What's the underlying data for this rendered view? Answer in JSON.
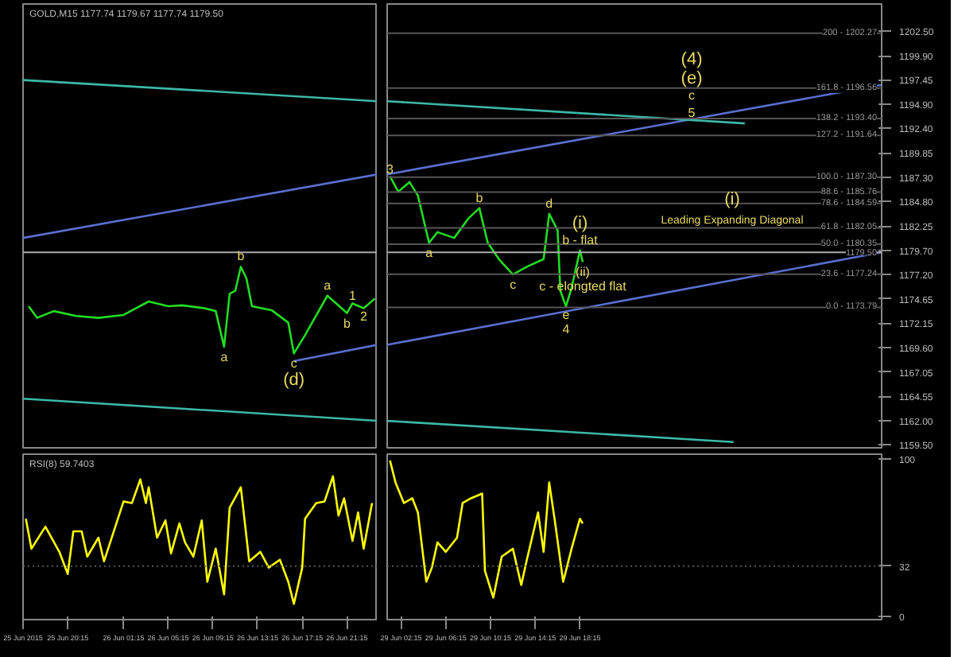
{
  "chart_data": [
    {
      "type": "line",
      "title": "GOLD,M15  1177.74 1179.67 1177.74 1179.50",
      "xlim": [
        "2015-06-25T16:15",
        "2015-06-27T00:00"
      ],
      "ylim": [
        1159.2,
        1205.3
      ],
      "tick_labels": false,
      "series": [
        {
          "color": "#22dd22",
          "x": [
            "2015-06-25T16:45",
            "2015-06-25T17:30",
            "2015-06-25T19:00",
            "2015-06-25T21:00",
            "2015-06-25T23:00",
            "2015-06-26T01:15",
            "2015-06-26T03:30",
            "2015-06-26T05:15",
            "2015-06-26T06:30",
            "2015-06-26T08:30",
            "2015-06-26T09:30",
            "2015-06-26T10:15",
            "2015-06-26T10:45",
            "2015-06-26T11:15",
            "2015-06-26T11:45",
            "2015-06-26T12:15",
            "2015-06-26T12:45",
            "2015-06-26T14:30",
            "2015-06-26T16:00",
            "2015-06-26T16:30",
            "2015-06-26T17:30",
            "2015-06-26T19:30",
            "2015-06-26T21:15",
            "2015-06-26T21:45",
            "2015-06-26T22:45",
            "2015-06-26T23:45"
          ],
          "values": [
            1173.9,
            1172.7,
            1173.4,
            1172.9,
            1172.7,
            1173.0,
            1174.4,
            1173.9,
            1174.0,
            1173.7,
            1173.4,
            1169.7,
            1175.2,
            1175.5,
            1178.0,
            1176.8,
            1173.9,
            1173.5,
            1172.2,
            1169.0,
            1170.9,
            1175.0,
            1173.2,
            1174.2,
            1173.7,
            1174.7
          ]
        },
        {
          "color": "#5a6fd0",
          "x": [
            "2015-06-25T16:15",
            "2015-06-27T00:00"
          ],
          "values": [
            1181.0,
            1187.6
          ]
        },
        {
          "color": "#5a6fd0",
          "x": [
            "2015-06-26T16:30",
            "2015-06-27T00:00"
          ],
          "values": [
            1168.2,
            1169.9
          ]
        },
        {
          "color": "#3cb8a8",
          "x": [
            "2015-06-25T16:15",
            "2015-06-27T00:00"
          ],
          "values": [
            1197.4,
            1195.2
          ]
        },
        {
          "color": "#3cb8a8",
          "x": [
            "2015-06-25T16:15",
            "2015-06-27T00:00"
          ],
          "values": [
            1164.3,
            1162.0
          ]
        }
      ],
      "ref_lines": [
        {
          "axis": "y",
          "value": 1179.5,
          "color": "#aaaaaa"
        }
      ],
      "annotations": [
        {
          "text": "1",
          "x": "2015-06-26T21:45",
          "y": 1174.2
        },
        {
          "text": "2",
          "x": "2015-06-26T22:45",
          "y": 1173.7
        },
        {
          "text": "b",
          "x": "2015-06-26T11:45",
          "y": 1178.0
        },
        {
          "text": "a",
          "x": "2015-06-26T10:15",
          "y": 1169.7
        },
        {
          "text": "c",
          "x": "2015-06-26T16:30",
          "y": 1169.0
        },
        {
          "text": "(d)",
          "x": "2015-06-26T16:30",
          "y": 1169.0
        },
        {
          "text": "a",
          "x": "2015-06-26T19:30",
          "y": 1175.0
        },
        {
          "text": "b",
          "x": "2015-06-26T21:15",
          "y": 1173.2
        }
      ]
    },
    {
      "type": "line",
      "xlim": [
        "2015-06-29T01:00",
        "2015-06-30T21:15"
      ],
      "ylim": [
        1159.2,
        1205.3
      ],
      "yticks": [
        {
          "value": 1202.5,
          "label": "1202.50"
        },
        {
          "value": 1199.9,
          "label": "1199.90"
        },
        1197.45,
        {
          "value": 1194.9,
          "label": "1194.90"
        },
        {
          "value": 1192.4,
          "label": "1192.40"
        },
        1189.85,
        {
          "value": 1187.3,
          "label": "1187.30"
        },
        {
          "value": 1184.8,
          "label": "1184.80"
        },
        1182.25,
        {
          "value": 1179.7,
          "label": "1179.70"
        },
        {
          "value": 1177.2,
          "label": "1177.20"
        },
        1174.65,
        1172.15,
        {
          "value": 1169.6,
          "label": "1169.60"
        },
        1167.05,
        1164.55,
        {
          "value": 1162.0,
          "label": "1162.00"
        },
        {
          "value": 1159.5,
          "label": "1159.50"
        }
      ],
      "tick_labels": "y",
      "series": [
        {
          "color": "#22dd22",
          "x": [
            "2015-06-29T01:15",
            "2015-06-29T02:00",
            "2015-06-29T03:00",
            "2015-06-29T03:45",
            "2015-06-29T04:45",
            "2015-06-29T05:30",
            "2015-06-29T07:00",
            "2015-06-29T08:15",
            "2015-06-29T09:15",
            "2015-06-29T10:00",
            "2015-06-29T11:00",
            "2015-06-29T12:15",
            "2015-06-29T13:30",
            "2015-06-29T15:00",
            "2015-06-29T15:30",
            "2015-06-29T16:15",
            "2015-06-29T16:30",
            "2015-06-29T17:00",
            "2015-06-29T17:30",
            "2015-06-29T18:15",
            "2015-06-29T18:30"
          ],
          "values": [
            1187.4,
            1185.8,
            1186.8,
            1185.4,
            1180.5,
            1181.6,
            1181.0,
            1183.0,
            1184.1,
            1180.5,
            1178.8,
            1177.2,
            1178.0,
            1178.8,
            1183.5,
            1181.8,
            1175.5,
            1173.9,
            1175.8,
            1179.7,
            1178.5
          ]
        },
        {
          "color": "#5a6fd0",
          "x": [
            "2015-06-29T01:00",
            "2015-06-30T21:15"
          ],
          "values": [
            1187.6,
            1196.9
          ]
        },
        {
          "color": "#5a6fd0",
          "x": [
            "2015-06-29T01:00",
            "2015-06-30T21:15"
          ],
          "values": [
            1169.9,
            1179.5
          ]
        },
        {
          "color": "#3cb8a8",
          "x": [
            "2015-06-29T01:00",
            "2015-06-30T09:00"
          ],
          "values": [
            1195.2,
            1192.9
          ]
        },
        {
          "color": "#3cb8a8",
          "x": [
            "2015-06-29T01:00",
            "2015-06-30T08:00"
          ],
          "values": [
            1162.0,
            1159.8
          ]
        }
      ],
      "ref_lines": [
        {
          "axis": "y",
          "value": 1202.27,
          "color": "#555555"
        },
        {
          "axis": "y",
          "value": 1196.56,
          "color": "#555555"
        },
        {
          "axis": "y",
          "value": 1193.4,
          "color": "#555555"
        },
        {
          "axis": "y",
          "value": 1191.64,
          "color": "#555555"
        },
        {
          "axis": "y",
          "value": 1187.3,
          "color": "#555555"
        },
        {
          "axis": "y",
          "value": 1185.76,
          "color": "#555555"
        },
        {
          "axis": "y",
          "value": 1184.59,
          "color": "#555555"
        },
        {
          "axis": "y",
          "value": 1182.05,
          "color": "#555555"
        },
        {
          "axis": "y",
          "value": 1180.35,
          "color": "#555555"
        },
        {
          "axis": "y",
          "value": 1179.5,
          "label": "1179.50",
          "color": "#aaaaaa"
        },
        {
          "axis": "y",
          "value": 1177.24,
          "color": "#555555"
        },
        {
          "axis": "y",
          "value": 1173.79,
          "color": "#555555"
        }
      ],
      "annotations": [
        {
          "text": "200 - 1202.27",
          "x": "2015-06-30T21:15",
          "y": 1202.27
        },
        {
          "text": "161.8 - 1196.56",
          "x": "2015-06-30T21:15",
          "y": 1196.56
        },
        {
          "text": "138.2 - 1193.40",
          "x": "2015-06-30T21:15",
          "y": 1193.4
        },
        {
          "text": "127.2 - 1191.64",
          "x": "2015-06-30T21:15",
          "y": 1191.64
        },
        {
          "text": "100.0 - 1187.30",
          "x": "2015-06-30T21:15",
          "y": 1187.3
        },
        {
          "text": "88.6 - 1185.76",
          "x": "2015-06-30T21:15",
          "y": 1185.76
        },
        {
          "text": "78.6 - 1184.59",
          "x": "2015-06-30T21:15",
          "y": 1184.59
        },
        {
          "text": "61.8 - 1182.05",
          "x": "2015-06-30T21:15",
          "y": 1182.05
        },
        {
          "text": "50.0 - 1180.35",
          "x": "2015-06-30T21:15",
          "y": 1180.35
        },
        {
          "text": "23.6 - 1177.24",
          "x": "2015-06-30T21:15",
          "y": 1177.24
        },
        {
          "text": "0.0 - 1173.79",
          "x": "2015-06-30T21:15",
          "y": 1173.79
        },
        "Leading Expanding Diagonal",
        "(i)",
        {
          "text": "5",
          "x": "2015-06-30T04:15",
          "y": 1193.25
        },
        "c",
        "(e)",
        "(4)",
        {
          "text": "3",
          "x": "2015-06-29T01:15",
          "y": 1187.4
        },
        {
          "text": "b",
          "x": "2015-06-29T09:15",
          "y": 1184.1
        },
        {
          "text": "d",
          "x": "2015-06-29T15:30",
          "y": 1183.5
        },
        {
          "text": "a",
          "x": "2015-06-29T04:45",
          "y": 1180.5
        },
        {
          "text": "c",
          "x": "2015-06-29T12:15",
          "y": 1177.2
        },
        {
          "text": "e",
          "x": "2015-06-29T17:00",
          "y": 1173.9
        },
        {
          "text": "4",
          "x": "2015-06-29T17:00",
          "y": 1173.9
        },
        {
          "text": "b - flat",
          "x": "2015-06-29T18:15",
          "y": 1179.7
        },
        {
          "text": "(i)",
          "x": "2015-06-29T18:15",
          "y": 1179.7
        },
        {
          "text": "(ii)",
          "x": "2015-06-29T18:30",
          "y": 1178.5
        },
        "c - elongted flat"
      ]
    },
    {
      "type": "line",
      "title": "RSI(8) 59.7403",
      "xlim": [
        "2015-06-25T16:15",
        "2015-06-27T00:00"
      ],
      "ylim": [
        -2,
        103
      ],
      "tick_labels": "x",
      "xticks": [
        {
          "value": "2015-06-25T16:15",
          "label": "25 Jun 2015"
        },
        {
          "value": "2015-06-25T20:15",
          "label": "25 Jun 20:15"
        },
        {
          "value": "2015-06-26T01:15",
          "label": "26 Jun 01:15"
        },
        {
          "value": "2015-06-26T05:15",
          "label": "26 Jun 05:15"
        },
        {
          "value": "2015-06-26T09:15",
          "label": "26 Jun 09:15"
        },
        {
          "value": "2015-06-26T13:15",
          "label": "26 Jun 13:15"
        },
        {
          "value": "2015-06-26T17:15",
          "label": "26 Jun 17:15"
        },
        {
          "value": "2015-06-26T21:15",
          "label": "26 Jun 21:15"
        }
      ],
      "series": [
        {
          "color": "#ffff00",
          "x": [
            "2015-06-25T16:30",
            "2015-06-25T17:00",
            "2015-06-25T18:15",
            "2015-06-25T19:30",
            "2015-06-25T20:15",
            "2015-06-25T20:45",
            "2015-06-25T21:30",
            "2015-06-25T22:00",
            "2015-06-25T23:00",
            "2015-06-25T23:30",
            "2015-06-26T01:15",
            "2015-06-26T02:00",
            "2015-06-26T02:45",
            "2015-06-26T03:15",
            "2015-06-26T03:30",
            "2015-06-26T04:15",
            "2015-06-26T05:00",
            "2015-06-26T05:30",
            "2015-06-26T06:15",
            "2015-06-26T06:45",
            "2015-06-26T07:30",
            "2015-06-26T08:15",
            "2015-06-26T08:45",
            "2015-06-26T09:30",
            "2015-06-26T10:15",
            "2015-06-26T10:45",
            "2015-06-26T11:45",
            "2015-06-26T12:30",
            "2015-06-26T13:30",
            "2015-06-26T14:15",
            "2015-06-26T15:15",
            "2015-06-26T16:00",
            "2015-06-26T16:30",
            "2015-06-26T17:15",
            "2015-06-26T17:30",
            "2015-06-26T18:30",
            "2015-06-26T19:15",
            "2015-06-26T20:00",
            "2015-06-26T20:30",
            "2015-06-26T21:00",
            "2015-06-26T21:45",
            "2015-06-26T22:15",
            "2015-06-26T22:45",
            "2015-06-26T23:30"
          ],
          "values": [
            62,
            43,
            57,
            41,
            27,
            54,
            54,
            38,
            50,
            35,
            73,
            72,
            87,
            72,
            82,
            50,
            61,
            40,
            59,
            47,
            38,
            61,
            22,
            43,
            14,
            69,
            82,
            35,
            41,
            31,
            36,
            22,
            8,
            31,
            62,
            72,
            73,
            89,
            64,
            75,
            48,
            66,
            43,
            72
          ]
        }
      ],
      "ref_lines": [
        {
          "axis": "y",
          "value": 32,
          "color": "#555555",
          "line_style": "dotted"
        }
      ]
    },
    {
      "type": "line",
      "xlim": [
        "2015-06-29T01:00",
        "2015-06-30T21:15"
      ],
      "ylim": [
        -2,
        103
      ],
      "yticks": [
        0,
        32,
        100
      ],
      "xticks": [
        {
          "value": "2015-06-29T02:15",
          "label": "29 Jun 02:15"
        },
        {
          "value": "2015-06-29T06:15",
          "label": "29 Jun 06:15"
        },
        {
          "value": "2015-06-29T10:15",
          "label": "29 Jun 10:15"
        },
        {
          "value": "2015-06-29T14:15",
          "label": "29 Jun 14:15"
        },
        {
          "value": "2015-06-29T18:15",
          "label": "29 Jun 18:15"
        }
      ],
      "series": [
        {
          "color": "#ffff00",
          "x": [
            "2015-06-29T01:15",
            "2015-06-29T01:45",
            "2015-06-29T02:30",
            "2015-06-29T03:15",
            "2015-06-29T03:45",
            "2015-06-29T04:30",
            "2015-06-29T05:00",
            "2015-06-29T05:30",
            "2015-06-29T06:15",
            "2015-06-29T07:15",
            "2015-06-29T07:45",
            "2015-06-29T08:30",
            "2015-06-29T09:30",
            "2015-06-29T09:45",
            "2015-06-29T10:30",
            "2015-06-29T11:15",
            "2015-06-29T12:15",
            "2015-06-29T13:00",
            "2015-06-29T13:30",
            "2015-06-29T14:30",
            "2015-06-29T15:00",
            "2015-06-29T15:30",
            "2015-06-29T16:00",
            "2015-06-29T16:45",
            "2015-06-29T17:30",
            "2015-06-29T18:15",
            "2015-06-29T18:30"
          ],
          "values": [
            99,
            85,
            72,
            75,
            66,
            22,
            31,
            47,
            41,
            50,
            72,
            75,
            78,
            29,
            12,
            38,
            43,
            20,
            36,
            66,
            41,
            85,
            61,
            22,
            43,
            62,
            59
          ]
        }
      ],
      "ref_lines": [
        {
          "axis": "y",
          "value": 32,
          "color": "#555555",
          "line_style": "dotted"
        }
      ]
    }
  ]
}
